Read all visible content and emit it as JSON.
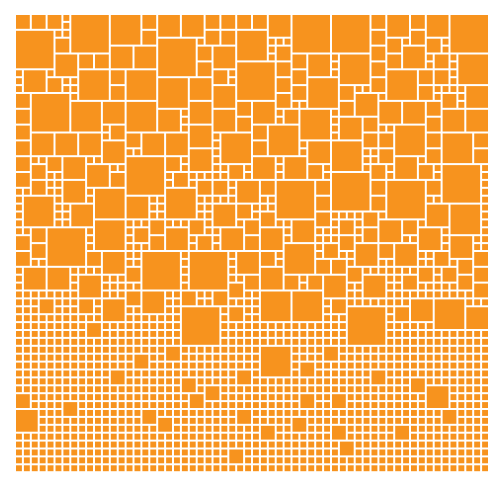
{
  "artwork": {
    "kind": "square-mosaic",
    "fill_color": "#F7931E",
    "background_color": "#FFFFFF"
  }
}
